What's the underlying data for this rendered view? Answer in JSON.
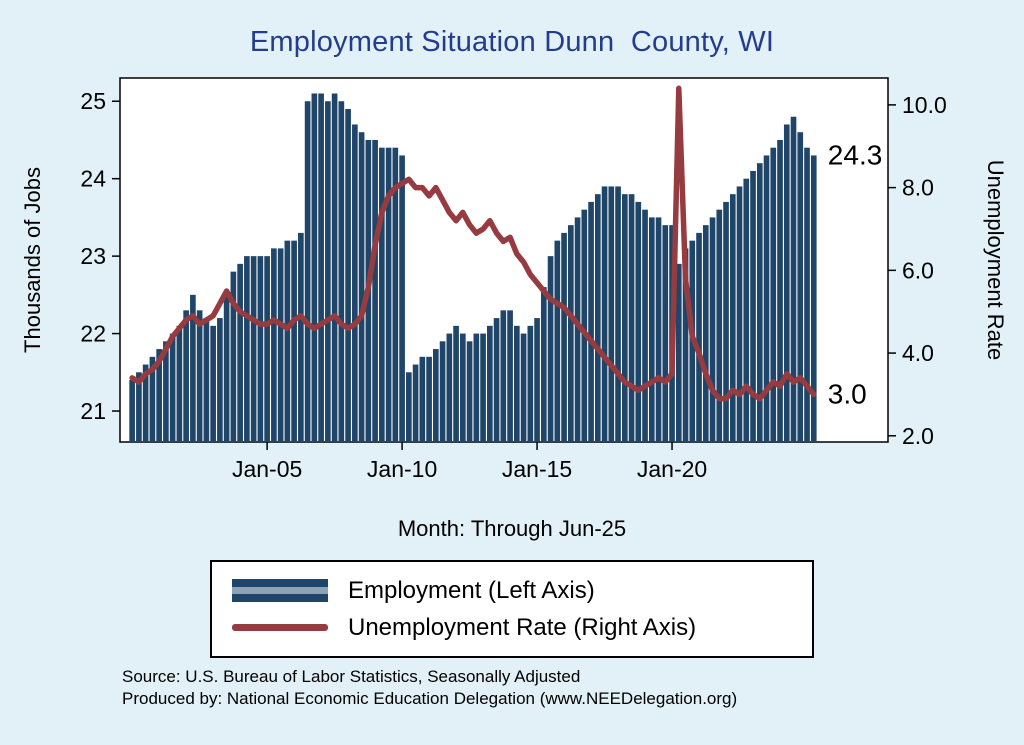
{
  "title": {
    "text": "Employment Situation Dunn  County, WI",
    "color": "#233c8f"
  },
  "x_caption": "Month: Through Jun-25",
  "colors": {
    "page_background": "#e2f1f7",
    "plot_background": "#ffffff",
    "bar": "#1f4568",
    "line": "#963b40"
  },
  "legend": {
    "items": [
      {
        "label": "Employment (Left Axis)",
        "type": "bar",
        "color": "#1f4568"
      },
      {
        "label": "Unemployment Rate (Right Axis)",
        "type": "line",
        "color": "#963b40"
      }
    ]
  },
  "footer": {
    "source": "Source: U.S. Bureau of Labor Statistics, Seasonally Adjusted",
    "produced_by": "Produced by: National Economic Education Delegation (www.NEEDelegation.org)"
  },
  "chart_data": {
    "type": "bar",
    "secondary_type": "line",
    "title": "Employment Situation Dunn  County, WI",
    "xlabel": "Month: Through Jun-25",
    "grid": false,
    "legend_position": "bottom",
    "x_start": 2000.0,
    "x_step": 0.25,
    "x_period": "quarterly 2000Q1 through 2025Q2 (Jun-25)",
    "xlim": [
      1999.55,
      2028.0
    ],
    "x_ticks": [
      {
        "value": 2005.0,
        "label": "Jan-05"
      },
      {
        "value": 2010.0,
        "label": "Jan-10"
      },
      {
        "value": 2015.0,
        "label": "Jan-15"
      },
      {
        "value": 2020.0,
        "label": "Jan-20"
      }
    ],
    "left_axis": {
      "label": "Thousands of Jobs",
      "ylim": [
        20.6,
        25.3
      ],
      "ticks": [
        21,
        22,
        23,
        24,
        25
      ],
      "tick_labels": [
        "21",
        "22",
        "23",
        "24",
        "25"
      ]
    },
    "right_axis": {
      "label": "Unemployment Rate",
      "ylim": [
        1.85,
        10.65
      ],
      "ticks": [
        2,
        4,
        6,
        8,
        10
      ],
      "tick_labels": [
        "2.0",
        "4.0",
        "6.0",
        "8.0",
        "10.0"
      ]
    },
    "series": [
      {
        "name": "Employment (Left Axis)",
        "kind": "bar",
        "axis": "left",
        "color": "#1f4568",
        "values": [
          21.4,
          21.5,
          21.6,
          21.7,
          21.8,
          21.9,
          22.0,
          22.1,
          22.3,
          22.5,
          22.3,
          22.2,
          22.1,
          22.2,
          22.5,
          22.8,
          22.9,
          23.0,
          23.0,
          23.0,
          23.0,
          23.1,
          23.1,
          23.2,
          23.2,
          23.3,
          25.0,
          25.1,
          25.1,
          25.0,
          25.1,
          25.0,
          24.9,
          24.7,
          24.6,
          24.5,
          24.5,
          24.4,
          24.4,
          24.4,
          24.3,
          21.5,
          21.6,
          21.7,
          21.7,
          21.8,
          21.9,
          22.0,
          22.1,
          22.0,
          21.9,
          22.0,
          22.0,
          22.1,
          22.2,
          22.3,
          22.3,
          22.1,
          22.0,
          22.1,
          22.2,
          22.6,
          23.0,
          23.2,
          23.3,
          23.4,
          23.5,
          23.6,
          23.7,
          23.8,
          23.9,
          23.9,
          23.9,
          23.8,
          23.8,
          23.7,
          23.6,
          23.5,
          23.5,
          23.4,
          23.4,
          22.9,
          23.1,
          23.2,
          23.3,
          23.4,
          23.5,
          23.6,
          23.7,
          23.8,
          23.9,
          24.0,
          24.1,
          24.2,
          24.3,
          24.4,
          24.5,
          24.7,
          24.8,
          24.6,
          24.4,
          24.3
        ]
      },
      {
        "name": "Unemployment Rate (Right Axis)",
        "kind": "line",
        "axis": "right",
        "color": "#963b40",
        "values": [
          3.4,
          3.3,
          3.5,
          3.6,
          3.8,
          4.1,
          4.4,
          4.6,
          4.8,
          4.9,
          4.7,
          4.8,
          4.9,
          5.2,
          5.5,
          5.2,
          5.0,
          4.9,
          4.8,
          4.7,
          4.7,
          4.8,
          4.7,
          4.6,
          4.8,
          4.9,
          4.7,
          4.6,
          4.7,
          4.8,
          4.9,
          4.7,
          4.6,
          4.7,
          4.9,
          5.6,
          6.6,
          7.4,
          7.8,
          8.0,
          8.1,
          8.2,
          8.0,
          8.0,
          7.8,
          8.0,
          7.7,
          7.4,
          7.2,
          7.4,
          7.1,
          6.9,
          7.0,
          7.2,
          6.9,
          6.7,
          6.8,
          6.4,
          6.2,
          5.9,
          5.7,
          5.5,
          5.3,
          5.2,
          5.1,
          4.9,
          4.7,
          4.5,
          4.3,
          4.1,
          3.9,
          3.7,
          3.5,
          3.3,
          3.2,
          3.1,
          3.2,
          3.3,
          3.4,
          3.3,
          3.5,
          10.4,
          5.8,
          4.4,
          4.0,
          3.5,
          3.1,
          2.9,
          2.9,
          3.1,
          3.0,
          3.2,
          3.0,
          2.9,
          3.1,
          3.3,
          3.2,
          3.5,
          3.3,
          3.4,
          3.2,
          3.0
        ]
      }
    ],
    "end_labels": [
      {
        "text": "24.3",
        "axis": "left",
        "value": 24.3
      },
      {
        "text": "3.0",
        "axis": "right",
        "value": 3.0
      }
    ]
  }
}
